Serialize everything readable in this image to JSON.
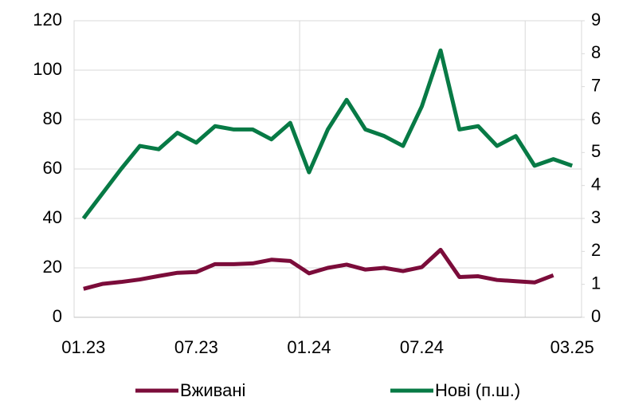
{
  "chart_data": {
    "type": "line",
    "categories": [
      "01.23",
      null,
      null,
      null,
      null,
      null,
      "07.23",
      null,
      null,
      null,
      null,
      null,
      "01.24",
      null,
      null,
      null,
      null,
      null,
      "07.24",
      null,
      null,
      null,
      null,
      null,
      null,
      null,
      "03.25"
    ],
    "series": [
      {
        "name": "Вживані",
        "color": "#7b0c3a",
        "axis": "y",
        "values": [
          11.5,
          13.5,
          14.3,
          15.3,
          16.7,
          18,
          18.3,
          21.5,
          21.5,
          21.8,
          23.3,
          22.8,
          17.8,
          20,
          21.3,
          19.3,
          20,
          18.7,
          20.3,
          27.3,
          16.3,
          16.6,
          15.1,
          14.6,
          14.1,
          17,
          null
        ]
      },
      {
        "name": "Нові (п.ш.)",
        "color": "#077a45",
        "axis": "y2",
        "values": [
          3.0,
          3.75,
          4.5,
          5.2,
          5.1,
          5.6,
          5.3,
          5.8,
          5.7,
          5.7,
          5.4,
          5.9,
          4.4,
          5.7,
          6.6,
          5.7,
          5.5,
          5.2,
          6.4,
          8.1,
          5.7,
          5.8,
          5.2,
          5.5,
          4.6,
          4.8,
          4.6
        ]
      }
    ],
    "ylim": [
      0,
      120
    ],
    "yticks": [
      0,
      20,
      40,
      60,
      80,
      100,
      120
    ],
    "y2lim": [
      0,
      9
    ],
    "y2ticks": [
      0,
      1,
      2,
      3,
      4,
      5,
      6,
      7,
      8,
      9
    ],
    "grid": true
  }
}
